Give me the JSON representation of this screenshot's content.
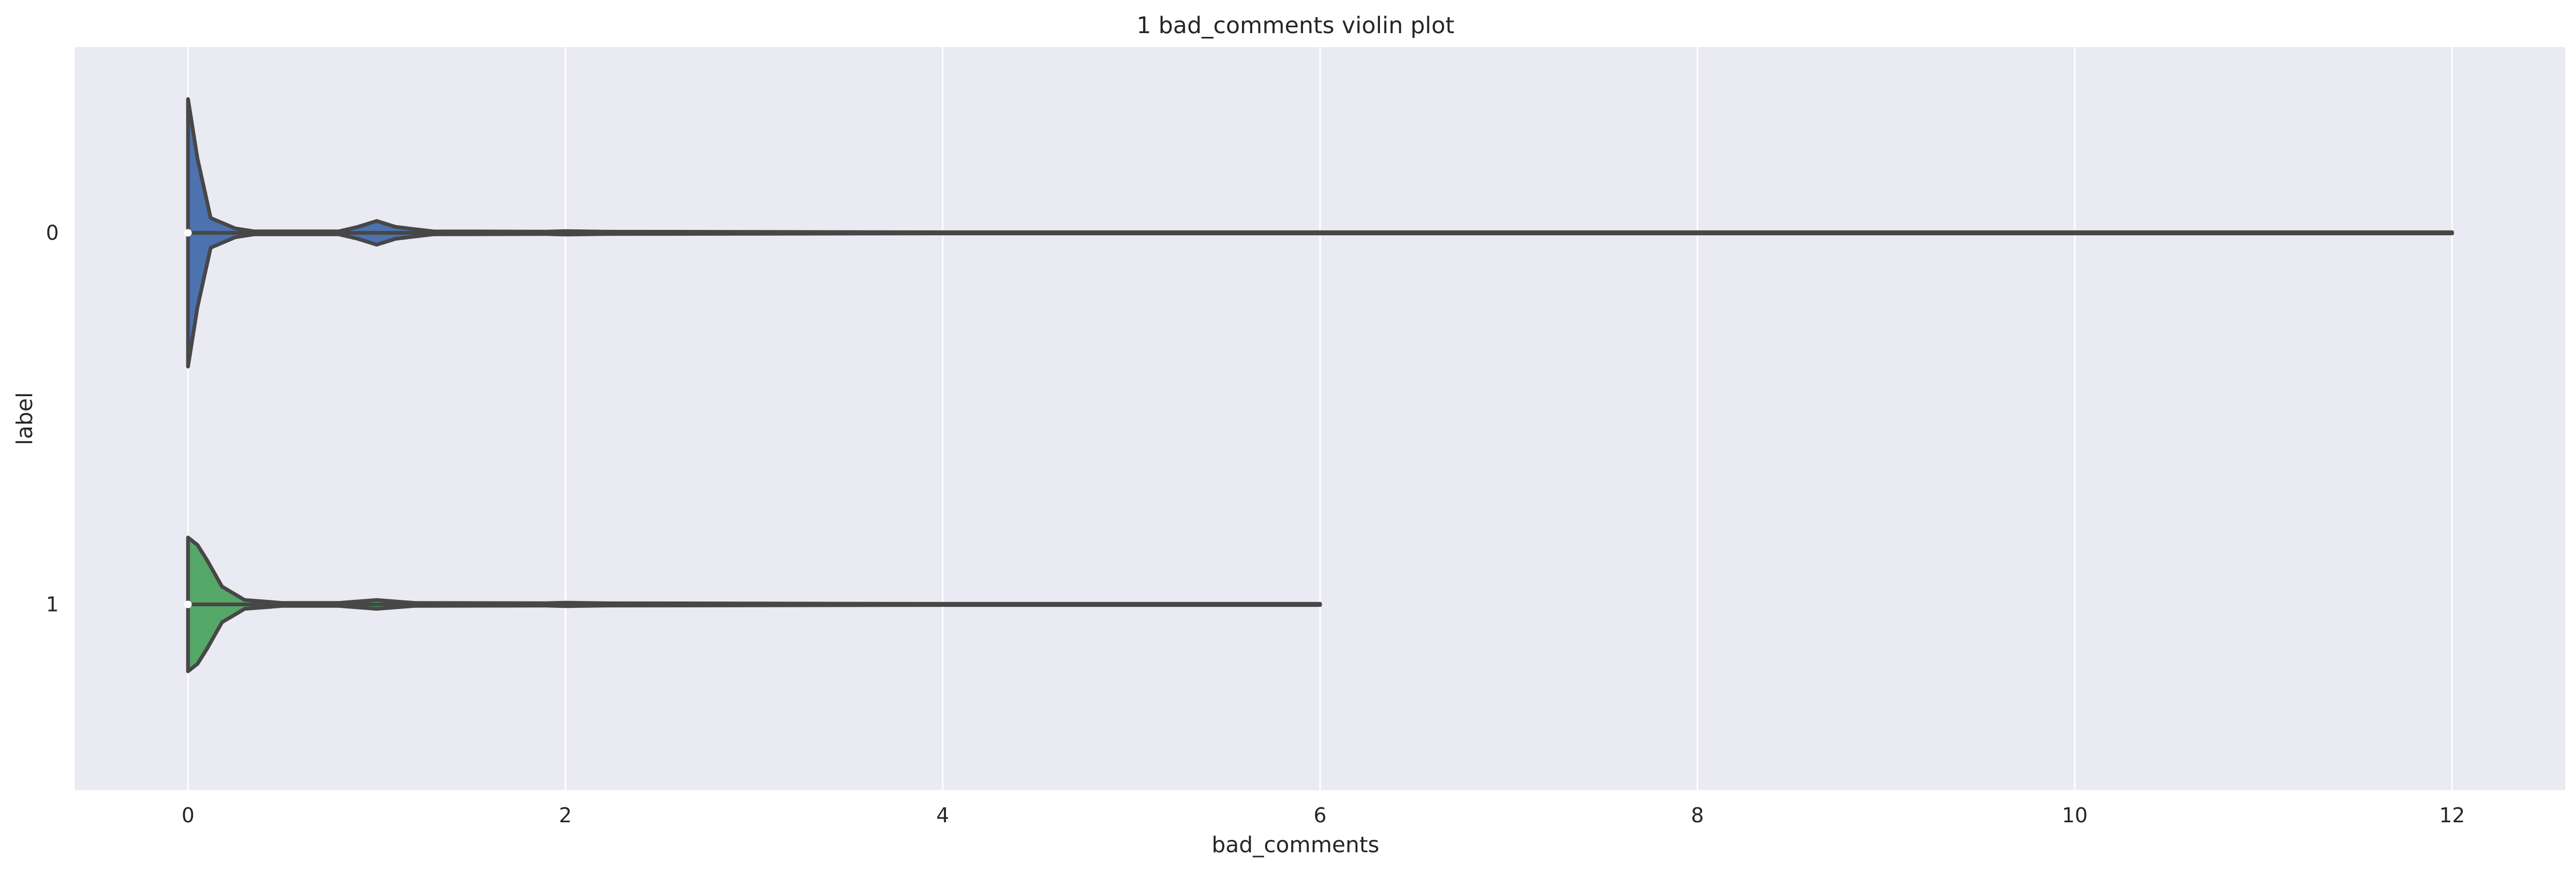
{
  "chart_data": {
    "type": "violin",
    "orientation": "horizontal",
    "title": "1 bad_comments violin plot",
    "xlabel": "bad_comments",
    "ylabel": "label",
    "xlim": [
      -0.6,
      12.6
    ],
    "xticks": [
      0,
      2,
      4,
      6,
      8,
      10,
      12
    ],
    "categories": [
      "0",
      "1"
    ],
    "grid": "vertical, white",
    "background": "#eaeaf2",
    "series": [
      {
        "category": "0",
        "color": "#4c72b0",
        "min": 0,
        "max": 12,
        "median": 0,
        "density": [
          [
            0,
            0.9
          ],
          [
            0.05,
            0.5
          ],
          [
            0.12,
            0.1
          ],
          [
            0.25,
            0.03
          ],
          [
            0.35,
            0.01
          ],
          [
            0.8,
            0.01
          ],
          [
            0.9,
            0.04
          ],
          [
            1.0,
            0.08
          ],
          [
            1.1,
            0.04
          ],
          [
            1.3,
            0.01
          ],
          [
            1.9,
            0.008
          ],
          [
            2.0,
            0.012
          ],
          [
            2.2,
            0.008
          ],
          [
            3.0,
            0.006
          ],
          [
            4.0,
            0.004
          ],
          [
            6.0,
            0.004
          ],
          [
            12,
            0.004
          ]
        ]
      },
      {
        "category": "1",
        "color": "#55a868",
        "min": 0,
        "max": 6,
        "median": 0,
        "density": [
          [
            0,
            0.45
          ],
          [
            0.05,
            0.4
          ],
          [
            0.1,
            0.3
          ],
          [
            0.18,
            0.12
          ],
          [
            0.3,
            0.03
          ],
          [
            0.5,
            0.01
          ],
          [
            0.8,
            0.01
          ],
          [
            1.0,
            0.03
          ],
          [
            1.2,
            0.01
          ],
          [
            1.9,
            0.008
          ],
          [
            2.0,
            0.012
          ],
          [
            2.2,
            0.008
          ],
          [
            3.0,
            0.006
          ],
          [
            4.0,
            0.004
          ],
          [
            6.0,
            0.004
          ]
        ]
      }
    ]
  }
}
